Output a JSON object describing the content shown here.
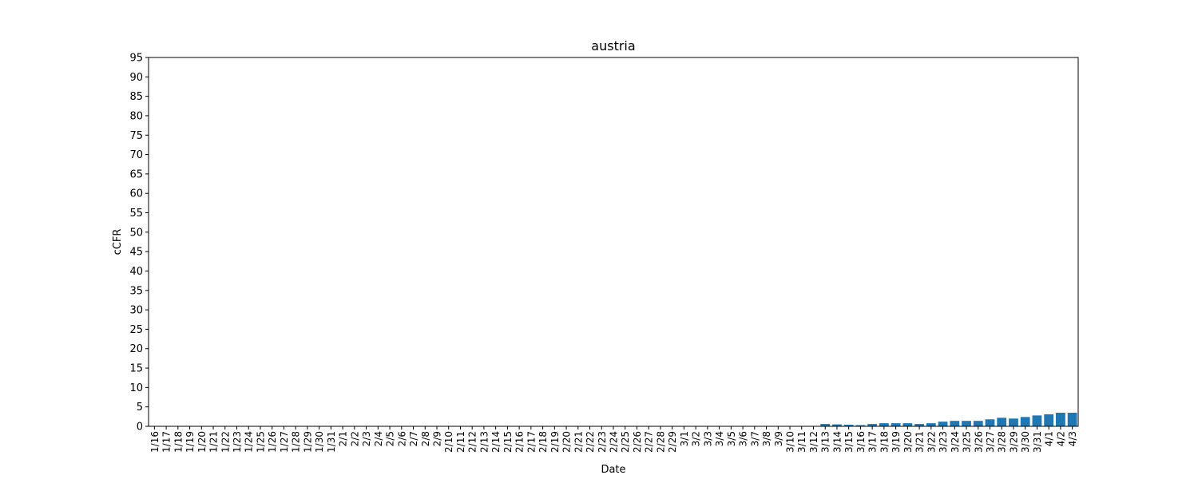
{
  "chart_data": {
    "type": "bar",
    "title": "austria",
    "xlabel": "Date",
    "ylabel": "cCFR",
    "ylim": [
      0,
      95
    ],
    "yticks": [
      0,
      5,
      10,
      15,
      20,
      25,
      30,
      35,
      40,
      45,
      50,
      55,
      60,
      65,
      70,
      75,
      80,
      85,
      90,
      95
    ],
    "grid": false,
    "legend": "none",
    "bar_color": "#1f77b4",
    "categories": [
      "1/16",
      "1/17",
      "1/18",
      "1/19",
      "1/20",
      "1/21",
      "1/22",
      "1/23",
      "1/24",
      "1/25",
      "1/26",
      "1/27",
      "1/28",
      "1/29",
      "1/30",
      "1/31",
      "2/1",
      "2/2",
      "2/3",
      "2/4",
      "2/5",
      "2/6",
      "2/7",
      "2/8",
      "2/9",
      "2/10",
      "2/11",
      "2/12",
      "2/13",
      "2/14",
      "2/15",
      "2/16",
      "2/17",
      "2/18",
      "2/19",
      "2/20",
      "2/21",
      "2/22",
      "2/23",
      "2/24",
      "2/25",
      "2/26",
      "2/27",
      "2/28",
      "2/29",
      "3/1",
      "3/2",
      "3/3",
      "3/4",
      "3/5",
      "3/6",
      "3/7",
      "3/8",
      "3/9",
      "3/10",
      "3/11",
      "3/12",
      "3/13",
      "3/14",
      "3/15",
      "3/16",
      "3/17",
      "3/18",
      "3/19",
      "3/20",
      "3/21",
      "3/22",
      "3/23",
      "3/24",
      "3/25",
      "3/26",
      "3/27",
      "3/28",
      "3/29",
      "3/30",
      "3/31",
      "4/1",
      "4/2",
      "4/3"
    ],
    "values": [
      0,
      0,
      0,
      0,
      0,
      0,
      0,
      0,
      0,
      0,
      0,
      0,
      0,
      0,
      0,
      0,
      0,
      0,
      0,
      0,
      0,
      0,
      0,
      0,
      0,
      0,
      0,
      0,
      0,
      0,
      0,
      0,
      0,
      0,
      0,
      0,
      0,
      0,
      0,
      0,
      0,
      0,
      0,
      0,
      0,
      0,
      0,
      0,
      0,
      0,
      0,
      0,
      0,
      0,
      0,
      0,
      0,
      0.6,
      0.5,
      0.4,
      0.3,
      0.6,
      0.8,
      0.8,
      0.8,
      0.6,
      0.8,
      1.2,
      1.4,
      1.4,
      1.4,
      1.8,
      2.2,
      2.0,
      2.4,
      2.8,
      3.1,
      3.5,
      3.5
    ]
  }
}
